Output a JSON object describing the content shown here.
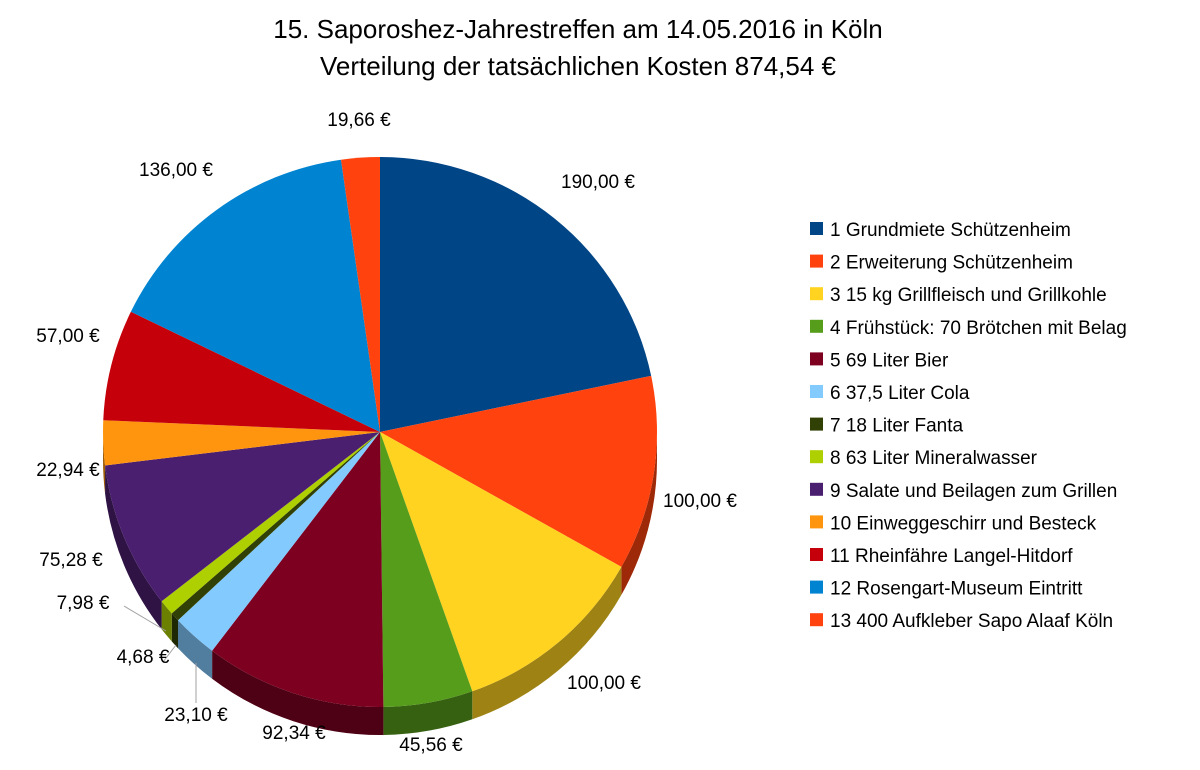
{
  "chart_data": {
    "type": "pie",
    "title": "15. Saporoshez-Jahrestreffen am 14.05.2016 in Köln",
    "subtitle": "Verteilung der tatsächlichen Kosten 874,54 €",
    "legend_position": "right",
    "three_d": true,
    "slices": [
      {
        "legend": "1 Grundmiete Schützenheim",
        "value": 190.0,
        "label": "190,00 €",
        "color": "#004586"
      },
      {
        "legend": "2 Erweiterung Schützenheim",
        "value": 100.0,
        "label": "100,00 €",
        "color": "#ff420e"
      },
      {
        "legend": "3 15 kg Grillfleisch und Grillkohle",
        "value": 100.0,
        "label": "100,00 €",
        "color": "#ffd320"
      },
      {
        "legend": "4 Frühstück: 70 Brötchen mit Belag",
        "value": 45.56,
        "label": "45,56 €",
        "color": "#579d1c"
      },
      {
        "legend": "5 69 Liter Bier",
        "value": 92.34,
        "label": "92,34 €",
        "color": "#7e0021"
      },
      {
        "legend": "6 37,5 Liter Cola",
        "value": 23.1,
        "label": "23,10 €",
        "color": "#83caff"
      },
      {
        "legend": "7 18 Liter Fanta",
        "value": 4.68,
        "label": "4,68 €",
        "color": "#314004"
      },
      {
        "legend": "8 63 Liter Mineralwasser",
        "value": 7.98,
        "label": "7,98 €",
        "color": "#aecf00"
      },
      {
        "legend": "9 Salate und Beilagen zum Grillen",
        "value": 75.28,
        "label": "75,28 €",
        "color": "#4b1f6f"
      },
      {
        "legend": "10 Einweggeschirr und Besteck",
        "value": 22.94,
        "label": "22,94 €",
        "color": "#ff950e"
      },
      {
        "legend": "11 Rheinfähre Langel-Hitdorf",
        "value": 57.0,
        "label": "57,00 €",
        "color": "#c5000b"
      },
      {
        "legend": "12 Rosengart-Museum Eintritt",
        "value": 136.0,
        "label": "136,00 €",
        "color": "#0084d1"
      },
      {
        "legend": "13 400 Aufkleber Sapo Alaaf Köln",
        "value": 19.66,
        "label": "19,66 €",
        "color": "#ff420e"
      }
    ]
  }
}
